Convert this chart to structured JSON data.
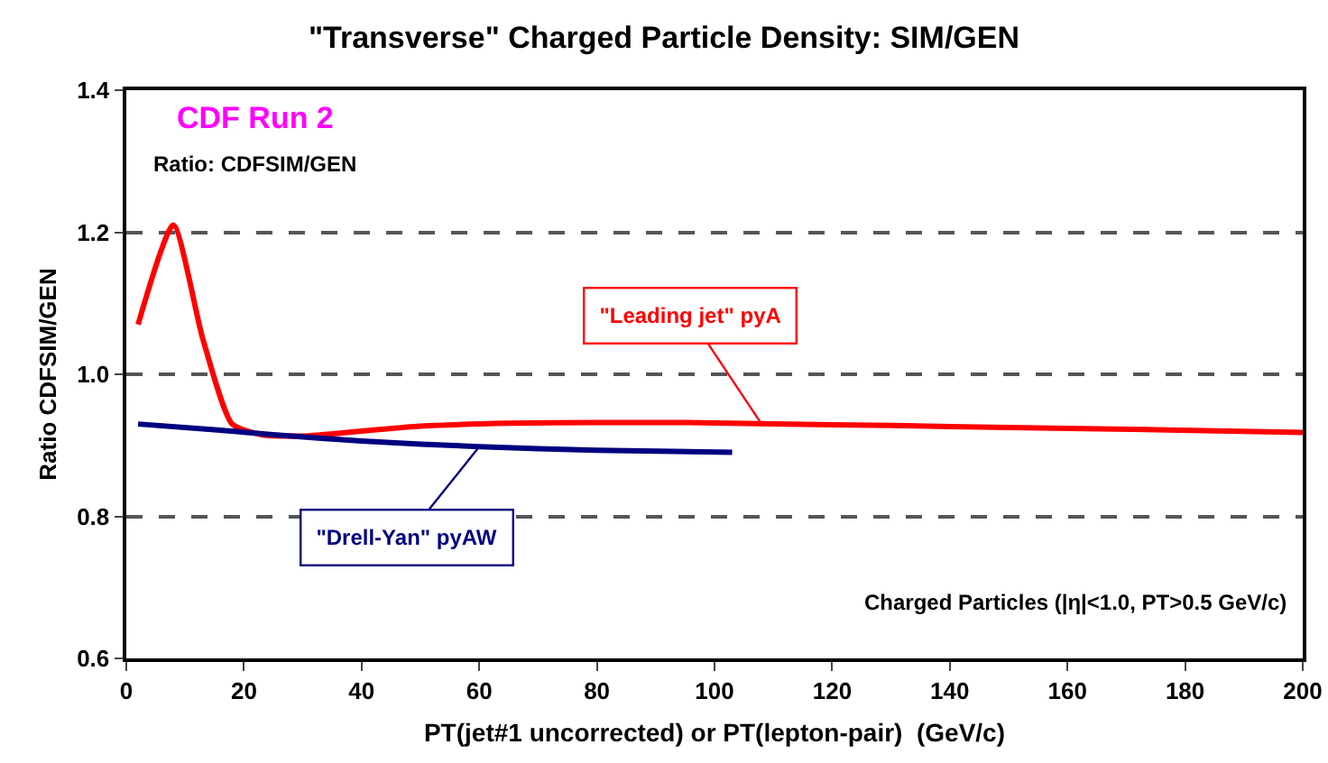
{
  "chart_data": {
    "type": "line",
    "title": "\"Transverse\" Charged Particle Density: SIM/GEN",
    "xlabel": "PT(jet#1 uncorrected) or PT(lepton-pair)  (GeV/c)",
    "ylabel": "Ratio CDFSIM/GEN",
    "series": [
      {
        "color": "#ff0000",
        "x": [
          2,
          8,
          13,
          18,
          23,
          30,
          40,
          50,
          65,
          80,
          95,
          110,
          130,
          150,
          175,
          200
        ],
        "values": [
          1.07,
          1.21,
          1.05,
          0.93,
          0.915,
          0.913,
          0.92,
          0.927,
          0.931,
          0.932,
          0.932,
          0.93,
          0.928,
          0.925,
          0.922,
          0.918
        ]
      },
      {
        "color": "#000080",
        "x": [
          2,
          15,
          25,
          40,
          60,
          80,
          103
        ],
        "values": [
          0.93,
          0.922,
          0.915,
          0.906,
          0.898,
          0.893,
          0.89
        ]
      }
    ],
    "annotations": [
      "CDF Run 2",
      "Ratio: CDFSIM/GEN",
      "Charged Particles (|η|<1.0, PT>0.5 GeV/c)",
      {
        "text": "\"Leading jet\" pyA",
        "x": 108,
        "y": 0.93
      },
      {
        "text": "\"Drell-Yan\" pyAW",
        "x": 60,
        "y": 0.898
      }
    ],
    "xlim": [
      0,
      200
    ],
    "xticks": [
      0,
      20,
      40,
      60,
      80,
      100,
      120,
      140,
      160,
      180,
      200
    ],
    "ylim": [
      0.6,
      1.4
    ],
    "yticks": [
      0.6,
      0.8,
      {
        "value": 1,
        "label": "1.0"
      },
      1.2,
      1.4
    ],
    "grid": "y",
    "line_style": "solid",
    "marker": "none"
  }
}
